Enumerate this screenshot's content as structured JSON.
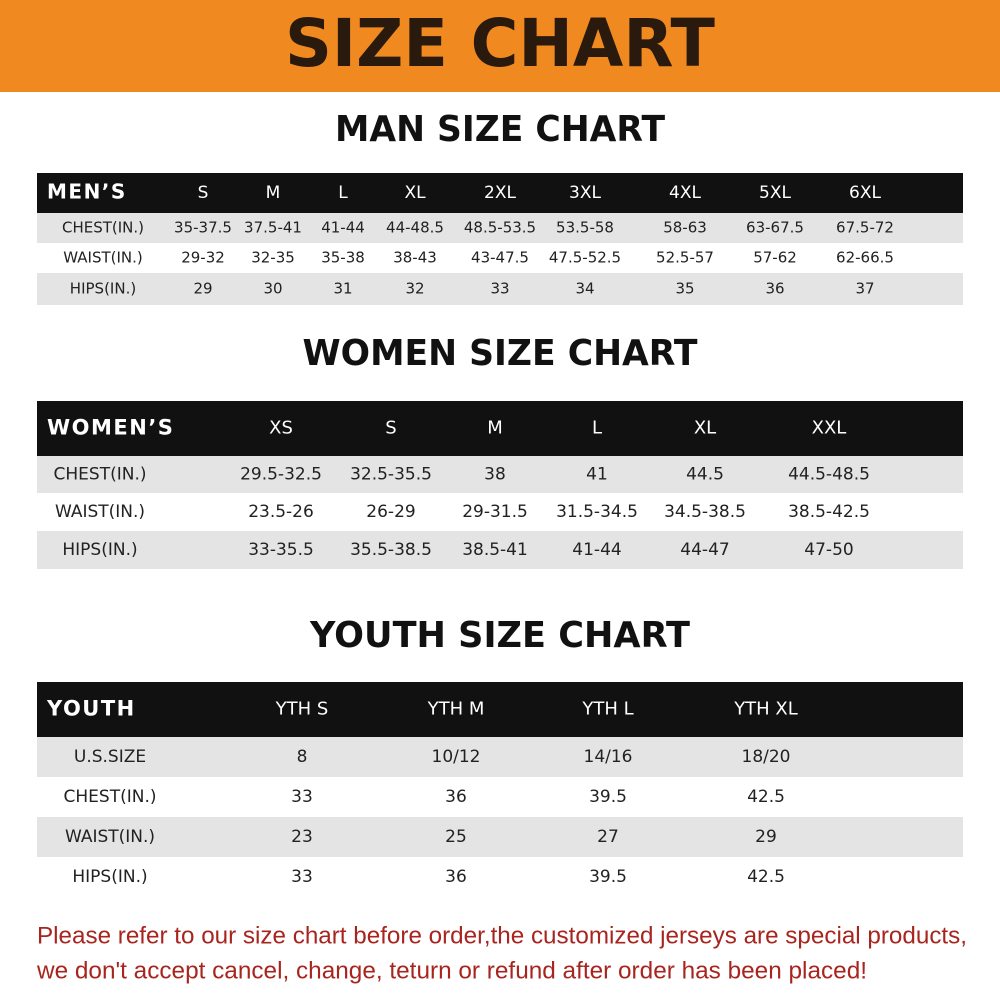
{
  "header": {
    "title": "SIZE CHART"
  },
  "sections": [
    {
      "title": "MAN SIZE CHART",
      "table": {
        "header": [
          "MEN’S",
          "S",
          "M",
          "L",
          "XL",
          "2XL",
          "3XL",
          "4XL",
          "5XL",
          "6XL"
        ],
        "rows": [
          [
            "CHEST(IN.)",
            "35-37.5",
            "37.5-41",
            "41-44",
            "44-48.5",
            "48.5-53.5",
            "53.5-58",
            "58-63",
            "63-67.5",
            "67.5-72"
          ],
          [
            "WAIST(IN.)",
            "29-32",
            "32-35",
            "35-38",
            "38-43",
            "43-47.5",
            "47.5-52.5",
            "52.5-57",
            "57-62",
            "62-66.5"
          ],
          [
            "HIPS(IN.)",
            "29",
            "30",
            "31",
            "32",
            "33",
            "34",
            "35",
            "36",
            "37"
          ]
        ]
      }
    },
    {
      "title": "WOMEN SIZE CHART",
      "table": {
        "header": [
          "WOMEN’S",
          "XS",
          "S",
          "M",
          "L",
          "XL",
          "XXL"
        ],
        "rows": [
          [
            "CHEST(IN.)",
            "29.5-32.5",
            "32.5-35.5",
            "38",
            "41",
            "44.5",
            "44.5-48.5"
          ],
          [
            "WAIST(IN.)",
            "23.5-26",
            "26-29",
            "29-31.5",
            "31.5-34.5",
            "34.5-38.5",
            "38.5-42.5"
          ],
          [
            "HIPS(IN.)",
            "33-35.5",
            "35.5-38.5",
            "38.5-41",
            "41-44",
            "44-47",
            "47-50"
          ]
        ]
      }
    },
    {
      "title": "YOUTH SIZE CHART",
      "table": {
        "header": [
          "YOUTH",
          "YTH S",
          "YTH M",
          "YTH L",
          "YTH XL"
        ],
        "rows": [
          [
            "U.S.SIZE",
            "8",
            "10/12",
            "14/16",
            "18/20"
          ],
          [
            "CHEST(IN.)",
            "33",
            "36",
            "39.5",
            "42.5"
          ],
          [
            "WAIST(IN.)",
            "23",
            "25",
            "27",
            "29"
          ],
          [
            "HIPS(IN.)",
            "33",
            "36",
            "39.5",
            "42.5"
          ]
        ]
      }
    }
  ],
  "footer": {
    "lines": [
      "Please refer to our size chart before order,the customized jerseys are special products,",
      "we don't accept cancel, change, teturn or refund after order has been placed!"
    ]
  }
}
